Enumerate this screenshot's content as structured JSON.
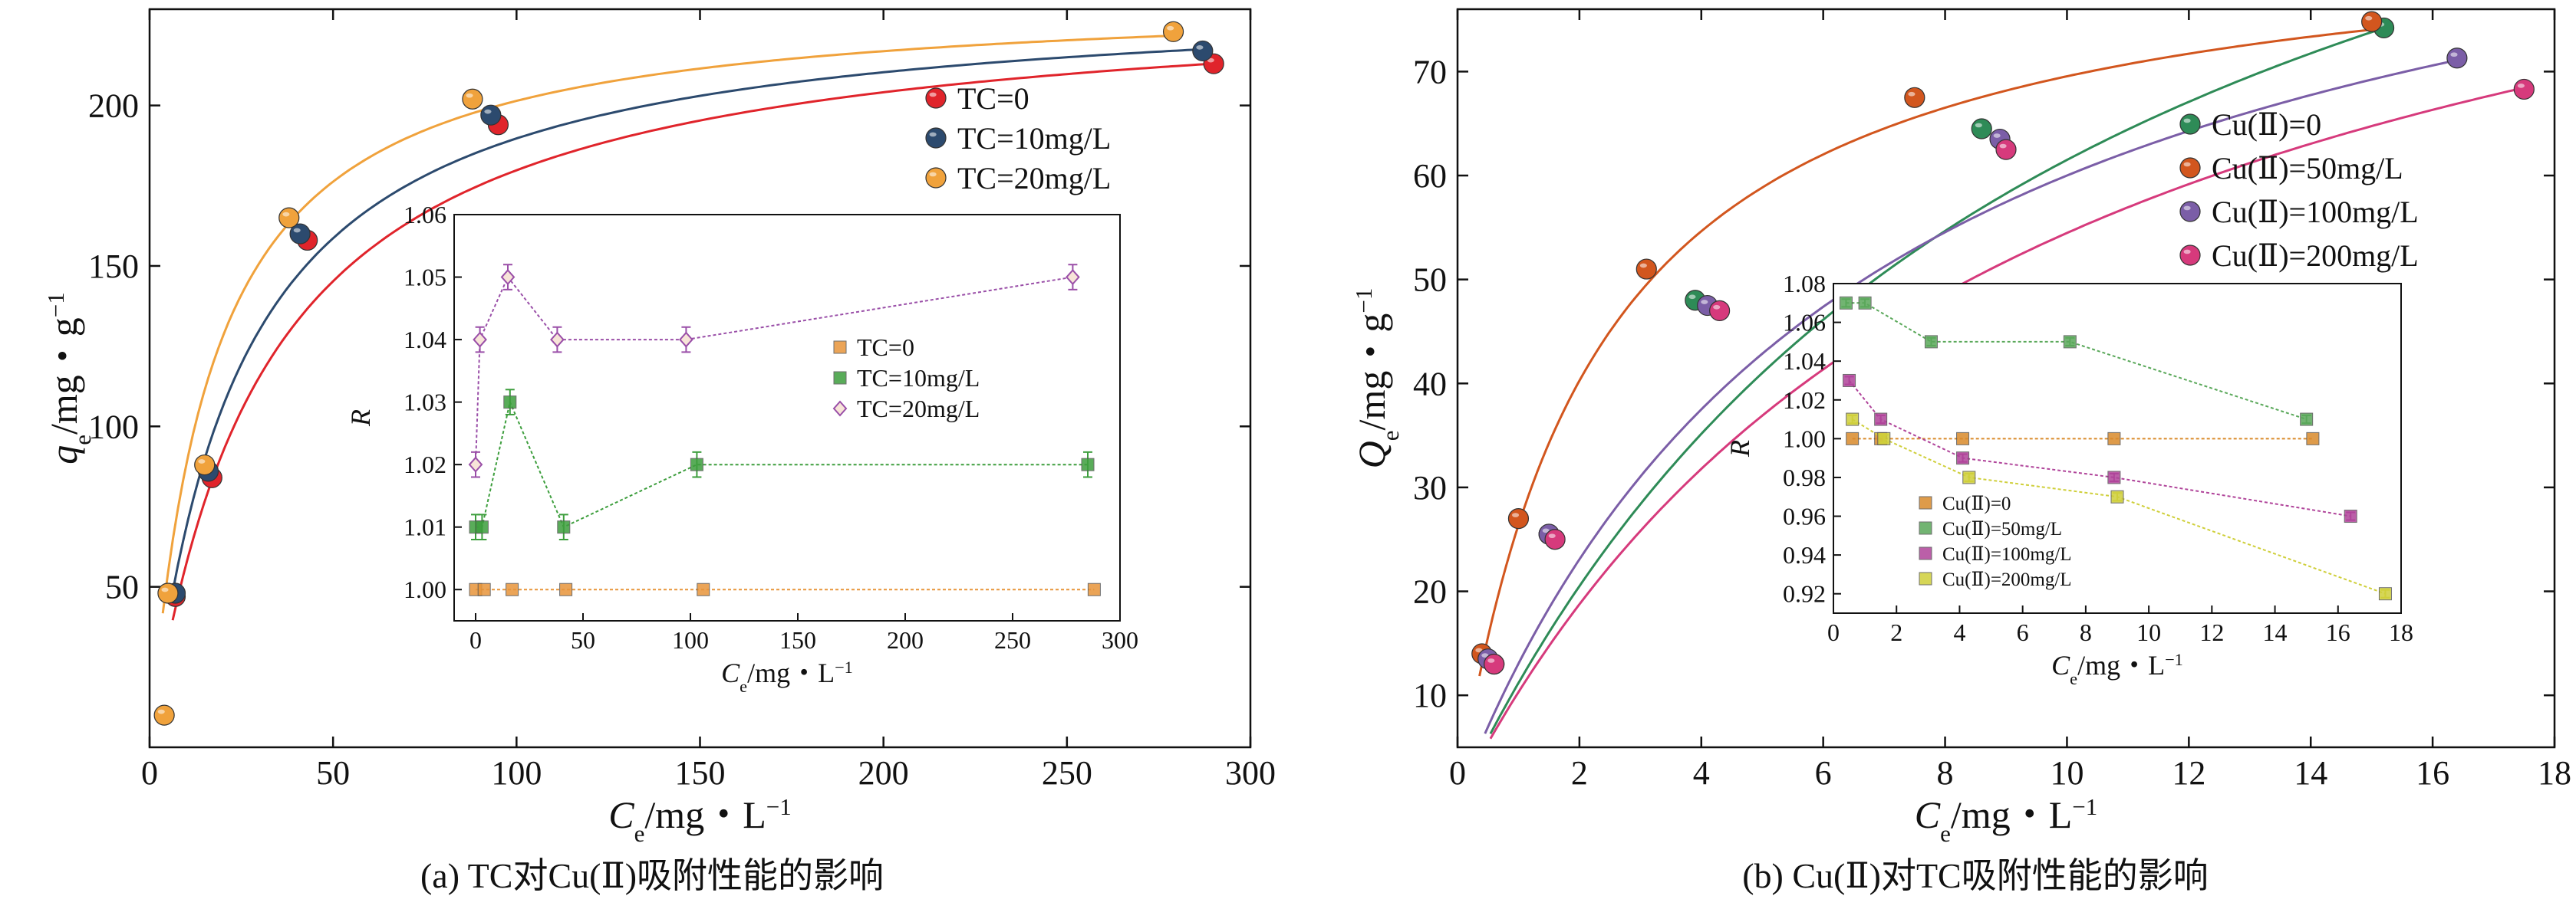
{
  "chart_data": [
    {
      "type": "scatter",
      "caption": "(a) TC对Cu(Ⅱ)吸附性能的影响",
      "xlabel": "C",
      "xlabel_sub": "e",
      "xlabel_unit": "/mg・L",
      "xlabel_sup": "−1",
      "ylabel": "q",
      "ylabel_sub": "e",
      "ylabel_unit": "/mg・g",
      "ylabel_sup": "−1",
      "xlim": [
        0,
        300
      ],
      "ylim": [
        0,
        230
      ],
      "xticks": [
        0,
        50,
        100,
        150,
        200,
        250,
        300
      ],
      "yticks": [
        50,
        100,
        150,
        200
      ],
      "legend_position": "top-right",
      "series": [
        {
          "name": "TC=0",
          "color": "#e0242b",
          "x": [
            7,
            17,
            43,
            95,
            290
          ],
          "y": [
            47,
            84,
            158,
            194,
            213
          ],
          "fit_model": "langmuir",
          "fit_qmax": 236,
          "fit_k": 0.032
        },
        {
          "name": "TC=10mg/L",
          "color": "#2c4a6e",
          "x": [
            7,
            16,
            41,
            93,
            287
          ],
          "y": [
            48,
            86,
            160,
            197,
            217
          ],
          "fit_model": "langmuir",
          "fit_qmax": 236,
          "fit_k": 0.041
        },
        {
          "name": "TC=20mg/L",
          "color": "#f0a23c",
          "x": [
            4,
            5,
            15,
            38,
            88,
            279
          ],
          "y": [
            10,
            48,
            88,
            165,
            202,
            223
          ],
          "fit_model": "langmuir",
          "fit_qmax": 235,
          "fit_k": 0.06
        }
      ],
      "inset": {
        "type": "line",
        "xlabel": "C",
        "xlabel_sub": "e",
        "xlabel_unit": "/mg・L",
        "xlabel_sup": "−1",
        "ylabel": "R",
        "xlim": [
          -10,
          300
        ],
        "ylim": [
          0.995,
          1.06
        ],
        "xticks": [
          0,
          50,
          100,
          150,
          200,
          250,
          300
        ],
        "yticks": [
          1.0,
          1.01,
          1.02,
          1.03,
          1.04,
          1.05,
          1.06
        ],
        "ytick_labels": [
          "1.00",
          "1.01",
          "1.02",
          "1.03",
          "1.04",
          "1.05",
          "1.06"
        ],
        "series": [
          {
            "name": "TC=0",
            "color": "#e8953a",
            "marker": "square",
            "x": [
              0,
              4,
              17,
              42,
              106,
              288
            ],
            "y": [
              1.0,
              1.0,
              1.0,
              1.0,
              1.0,
              1.0
            ],
            "err": 0
          },
          {
            "name": "TC=10mg/L",
            "color": "#3d9e3d",
            "marker": "square",
            "x": [
              0,
              3,
              16,
              41,
              103,
              285
            ],
            "y": [
              1.01,
              1.01,
              1.03,
              1.01,
              1.02,
              1.02
            ],
            "err": 0.002
          },
          {
            "name": "TC=20mg/L",
            "color": "#9a4fa8",
            "marker": "diamond",
            "x": [
              0,
              2,
              15,
              38,
              98,
              278
            ],
            "y": [
              1.02,
              1.04,
              1.05,
              1.04,
              1.04,
              1.05
            ],
            "err": 0.002
          }
        ]
      }
    },
    {
      "type": "scatter",
      "caption": "(b) Cu(Ⅱ)对TC吸附性能的影响",
      "xlabel": "C",
      "xlabel_sub": "e",
      "xlabel_unit": "/mg・L",
      "xlabel_sup": "−1",
      "ylabel": "Q",
      "ylabel_sub": "e",
      "ylabel_unit": "/mg・g",
      "ylabel_sup": "−1",
      "xlim": [
        0,
        18
      ],
      "ylim": [
        5,
        76
      ],
      "xticks": [
        0,
        2,
        4,
        6,
        8,
        10,
        12,
        14,
        16,
        18
      ],
      "yticks": [
        10,
        20,
        30,
        40,
        50,
        60,
        70
      ],
      "legend_position": "top-right",
      "series": [
        {
          "name": "Cu(Ⅱ)=0",
          "color": "#2e8b57",
          "x": [
            0.6,
            1.5,
            3.9,
            8.6,
            15.2
          ],
          "y": [
            13,
            25.5,
            48,
            64.5,
            74.2
          ],
          "fit_model": "langmuir",
          "fit_qmax": 123,
          "fit_k": 0.1
        },
        {
          "name": "Cu(Ⅱ)=50mg/L",
          "color": "#d2561e",
          "x": [
            0.4,
            1.0,
            3.1,
            7.5,
            15.0
          ],
          "y": [
            14,
            27,
            51,
            67.5,
            74.8
          ],
          "fit_model": "langmuir",
          "fit_qmax": 85,
          "fit_k": 0.45
        },
        {
          "name": "Cu(Ⅱ)=100mg/L",
          "color": "#7b5ea7",
          "x": [
            0.5,
            1.5,
            4.1,
            8.9,
            16.4
          ],
          "y": [
            13.5,
            25.5,
            47.5,
            63.5,
            71.3
          ],
          "fit_model": "langmuir",
          "fit_qmax": 100,
          "fit_k": 0.15
        },
        {
          "name": "Cu(Ⅱ)=200mg/L",
          "color": "#d63a7c",
          "x": [
            0.6,
            1.6,
            4.3,
            9.0,
            17.5
          ],
          "y": [
            13,
            25,
            47,
            62.5,
            68.3
          ],
          "fit_model": "langmuir",
          "fit_qmax": 104,
          "fit_k": 0.11
        }
      ],
      "inset": {
        "type": "line",
        "xlabel": "C",
        "xlabel_sub": "e",
        "xlabel_unit": "/mg・L",
        "xlabel_sup": "−1",
        "ylabel": "R",
        "xlim": [
          0,
          18
        ],
        "ylim": [
          0.91,
          1.08
        ],
        "xticks": [
          0,
          2,
          4,
          6,
          8,
          10,
          12,
          14,
          16,
          18
        ],
        "yticks": [
          0.92,
          0.94,
          0.96,
          0.98,
          1.0,
          1.02,
          1.04,
          1.06,
          1.08
        ],
        "ytick_labels": [
          "0.92",
          "0.94",
          "0.96",
          "0.98",
          "1.00",
          "1.02",
          "1.04",
          "1.06",
          "1.08"
        ],
        "series": [
          {
            "name": "Cu(Ⅱ)=0",
            "color": "#d98a2b",
            "marker": "square",
            "x": [
              0.6,
              1.5,
              4.1,
              8.9,
              15.2
            ],
            "y": [
              1.0,
              1.0,
              1.0,
              1.0,
              1.0
            ],
            "err": 0
          },
          {
            "name": "Cu(Ⅱ)=50mg/L",
            "color": "#5aa85a",
            "marker": "square",
            "x": [
              0.4,
              1.0,
              3.1,
              7.5,
              15.0
            ],
            "y": [
              1.07,
              1.07,
              1.05,
              1.05,
              1.01
            ],
            "err": 0.002
          },
          {
            "name": "Cu(Ⅱ)=100mg/L",
            "color": "#b0449a",
            "marker": "square",
            "x": [
              0.5,
              1.5,
              4.1,
              8.9,
              16.4
            ],
            "y": [
              1.03,
              1.01,
              0.99,
              0.98,
              0.96
            ],
            "err": 0.002
          },
          {
            "name": "Cu(Ⅱ)=200mg/L",
            "color": "#cfcf3a",
            "marker": "square",
            "x": [
              0.6,
              1.6,
              4.3,
              9.0,
              17.5
            ],
            "y": [
              1.01,
              1.0,
              0.98,
              0.97,
              0.92
            ],
            "err": 0.002
          }
        ]
      }
    }
  ]
}
